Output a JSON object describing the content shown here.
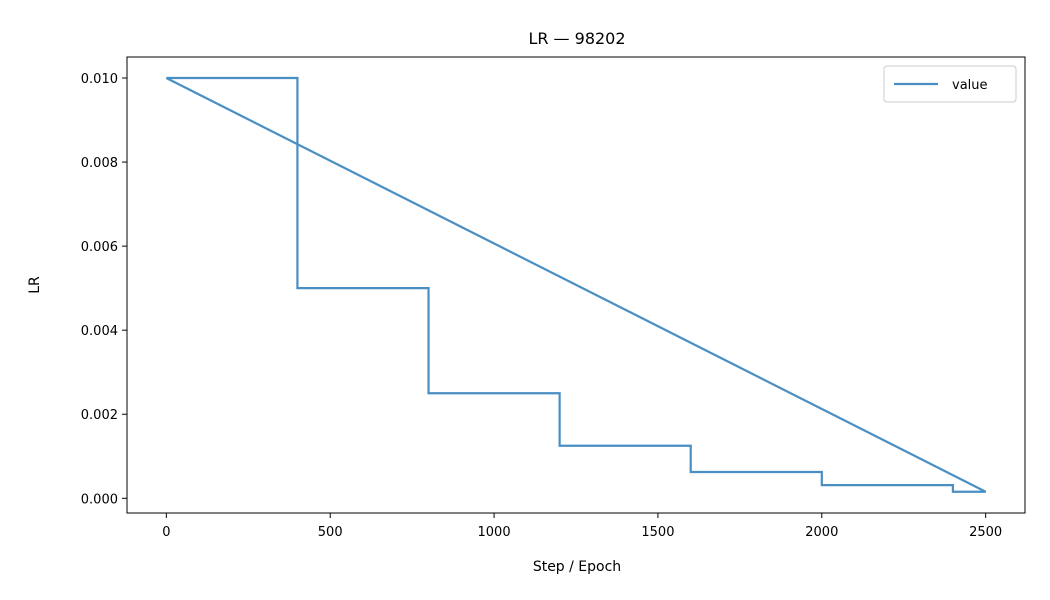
{
  "chart_data": {
    "type": "line",
    "title": "LR — 98202",
    "xlabel": "Step / Epoch",
    "ylabel": "LR",
    "xlim": [
      -120,
      2620
    ],
    "ylim": [
      -0.00035,
      0.0105
    ],
    "xticks": [
      0,
      500,
      1000,
      1500,
      2000,
      2500
    ],
    "yticks": [
      0.0,
      0.002,
      0.004,
      0.006,
      0.008,
      0.01
    ],
    "xtick_labels": [
      "0",
      "500",
      "1000",
      "1500",
      "2000",
      "2500"
    ],
    "ytick_labels": [
      "0.000",
      "0.002",
      "0.004",
      "0.006",
      "0.008",
      "0.010"
    ],
    "grid": false,
    "legend": {
      "position": "top-right"
    },
    "series": [
      {
        "name": "value",
        "color": "#4a8fc4",
        "x": [
          0,
          400,
          400,
          800,
          800,
          1200,
          1200,
          1600,
          1600,
          2000,
          2000,
          2400,
          2400,
          2500,
          0
        ],
        "y": [
          0.01,
          0.01,
          0.005,
          0.005,
          0.0025,
          0.0025,
          0.00125,
          0.00125,
          0.000625,
          0.000625,
          0.0003125,
          0.0003125,
          0.00015625,
          0.00015625,
          0.01
        ]
      }
    ]
  }
}
